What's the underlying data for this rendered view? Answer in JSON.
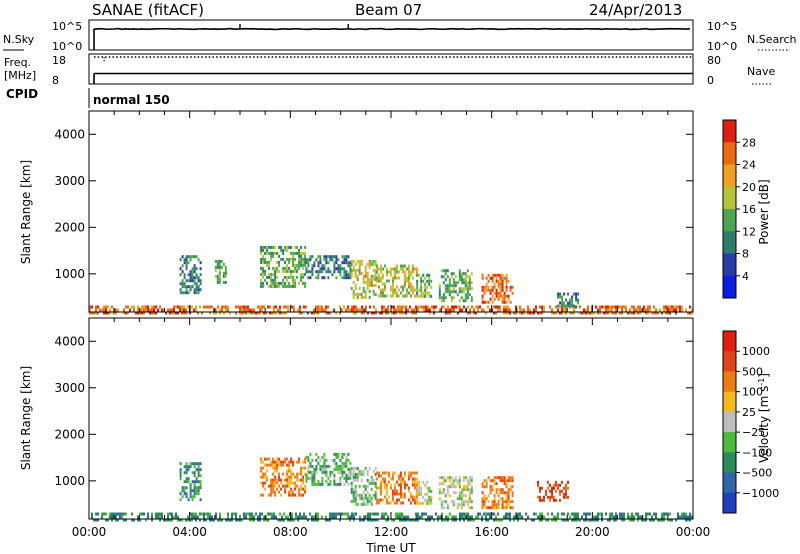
{
  "header": {
    "station": "SANAE (fitACF)",
    "beam": "Beam 07",
    "date": "24/Apr/2013"
  },
  "top_panels": {
    "nsky_label": "N.Sky",
    "nsearch_label": "N.Search",
    "nsky_ticks": [
      "10^5",
      "10^0"
    ],
    "nsearch_ticks": [
      "10^5",
      "10^0"
    ],
    "freq_label_1": "Freq.",
    "freq_label_2": "[MHz]",
    "freq_ticks": [
      "18",
      "8"
    ],
    "nave_label": "Nave",
    "nave_ticks": [
      "80",
      "0"
    ],
    "cpid_label": "CPID",
    "cpid_value": "normal 150"
  },
  "chart_data": [
    {
      "type": "heatmap",
      "title": "",
      "xlabel": "",
      "ylabel": "Slant Range [km]",
      "xlim": [
        0,
        24
      ],
      "ylim": [
        180,
        4500
      ],
      "x_ticks": [
        "00:00",
        "04:00",
        "08:00",
        "12:00",
        "16:00",
        "20:00",
        "00:00"
      ],
      "y_ticks": [
        1000,
        2000,
        3000,
        4000
      ],
      "colorbar": {
        "label": "Power [dB]",
        "ticks": [
          "4",
          "8",
          "12",
          "16",
          "20",
          "24",
          "28"
        ],
        "colors": [
          "#0a1ce6",
          "#2a3ca8",
          "#2e7d6c",
          "#4fa44f",
          "#b5c43a",
          "#f0a020",
          "#ee6a10",
          "#dd1e10"
        ]
      },
      "echo_regions": [
        {
          "t_start": 0.0,
          "t_end": 24.0,
          "r_min": 180,
          "r_max": 320,
          "level": 6
        },
        {
          "t_start": 3.6,
          "t_end": 4.4,
          "r_min": 600,
          "r_max": 1400,
          "level": 2
        },
        {
          "t_start": 5.0,
          "t_end": 5.4,
          "r_min": 800,
          "r_max": 1300,
          "level": 3
        },
        {
          "t_start": 6.8,
          "t_end": 8.6,
          "r_min": 700,
          "r_max": 1600,
          "level": 3
        },
        {
          "t_start": 8.6,
          "t_end": 10.4,
          "r_min": 900,
          "r_max": 1400,
          "level": 2
        },
        {
          "t_start": 10.4,
          "t_end": 11.4,
          "r_min": 500,
          "r_max": 1300,
          "level": 4
        },
        {
          "t_start": 11.4,
          "t_end": 13.0,
          "r_min": 500,
          "r_max": 1200,
          "level": 4
        },
        {
          "t_start": 13.0,
          "t_end": 13.6,
          "r_min": 500,
          "r_max": 1000,
          "level": 3
        },
        {
          "t_start": 13.9,
          "t_end": 15.2,
          "r_min": 400,
          "r_max": 1100,
          "level": 3
        },
        {
          "t_start": 15.6,
          "t_end": 16.8,
          "r_min": 400,
          "r_max": 1000,
          "level": 6
        },
        {
          "t_start": 18.6,
          "t_end": 19.4,
          "r_min": 300,
          "r_max": 600,
          "level": 2
        }
      ]
    },
    {
      "type": "heatmap",
      "title": "",
      "xlabel": "Time UT",
      "ylabel": "Slant Range [km]",
      "xlim": [
        0,
        24
      ],
      "ylim": [
        180,
        4500
      ],
      "x_ticks": [
        "00:00",
        "04:00",
        "08:00",
        "12:00",
        "16:00",
        "20:00",
        "00:00"
      ],
      "y_ticks": [
        1000,
        2000,
        3000,
        4000
      ],
      "colorbar": {
        "label": "Velocity [m s",
        "label_sup": "-1",
        "label_end": "]",
        "ticks": [
          "1000",
          "500",
          "100",
          "25",
          "−25",
          "−100",
          "−500",
          "−1000"
        ],
        "colors": [
          "#2040c0",
          "#2f66a8",
          "#2e8a5a",
          "#4cbb3a",
          "#bdbdbd",
          "#f5b820",
          "#ee7a14",
          "#e0421a",
          "#dd1e10"
        ]
      },
      "echo_regions": [
        {
          "t_start": 0.0,
          "t_end": 24.0,
          "r_min": 180,
          "r_max": 320,
          "level": 2
        },
        {
          "t_start": 3.6,
          "t_end": 4.4,
          "r_min": 600,
          "r_max": 1400,
          "level": 2
        },
        {
          "t_start": 6.8,
          "t_end": 8.6,
          "r_min": 700,
          "r_max": 1500,
          "level": 6
        },
        {
          "t_start": 8.6,
          "t_end": 10.4,
          "r_min": 900,
          "r_max": 1600,
          "level": 3
        },
        {
          "t_start": 10.4,
          "t_end": 11.4,
          "r_min": 500,
          "r_max": 1300,
          "level": 3
        },
        {
          "t_start": 11.4,
          "t_end": 13.0,
          "r_min": 500,
          "r_max": 1200,
          "level": 6
        },
        {
          "t_start": 13.0,
          "t_end": 13.6,
          "r_min": 500,
          "r_max": 1000,
          "level": 4
        },
        {
          "t_start": 13.9,
          "t_end": 15.2,
          "r_min": 400,
          "r_max": 1100,
          "level": 4
        },
        {
          "t_start": 15.6,
          "t_end": 16.8,
          "r_min": 400,
          "r_max": 1100,
          "level": 6
        },
        {
          "t_start": 17.8,
          "t_end": 19.0,
          "r_min": 600,
          "r_max": 1000,
          "level": 7
        }
      ]
    }
  ],
  "time_series": {
    "nsky_spike_times": [
      6.0,
      10.3
    ],
    "data_start_time": 0.2,
    "nave_level": 0.35,
    "freq_level": 0.9,
    "nsky_level": 0.7
  }
}
